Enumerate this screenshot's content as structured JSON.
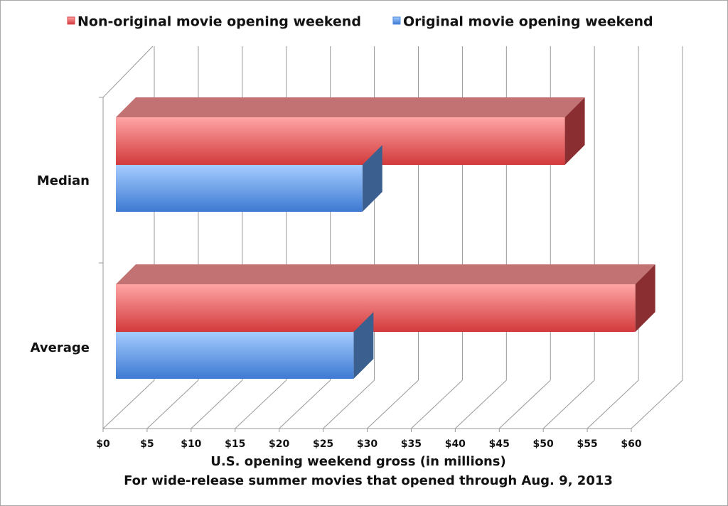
{
  "chart_data": {
    "type": "bar3d",
    "orientation": "horizontal",
    "x_label": "U.S. opening weekend gross (in millions)",
    "note": "For wide-release summer movies that opened through Aug. 9, 2013",
    "categories": [
      "Median",
      "Average"
    ],
    "series": [
      {
        "name": "Non-original movie opening weekend",
        "color": "#d9474a",
        "values": [
          51,
          59
        ]
      },
      {
        "name": "Original movie opening weekend",
        "color": "#4a8ae0",
        "values": [
          28,
          27
        ]
      }
    ],
    "xlim": [
      0,
      60
    ],
    "xticks": [
      {
        "value": 0,
        "label": "$0"
      },
      {
        "value": 5,
        "label": "$5"
      },
      {
        "value": 10,
        "label": "$10"
      },
      {
        "value": 15,
        "label": "$15"
      },
      {
        "value": 20,
        "label": "$20"
      },
      {
        "value": 25,
        "label": "$25"
      },
      {
        "value": 30,
        "label": "$30"
      },
      {
        "value": 35,
        "label": "$35"
      },
      {
        "value": 40,
        "label": "$40"
      },
      {
        "value": 45,
        "label": "$45"
      },
      {
        "value": 50,
        "label": "$50"
      },
      {
        "value": 55,
        "label": "$55"
      },
      {
        "value": 60,
        "label": "$60"
      }
    ],
    "grid": true,
    "legend": "top"
  }
}
